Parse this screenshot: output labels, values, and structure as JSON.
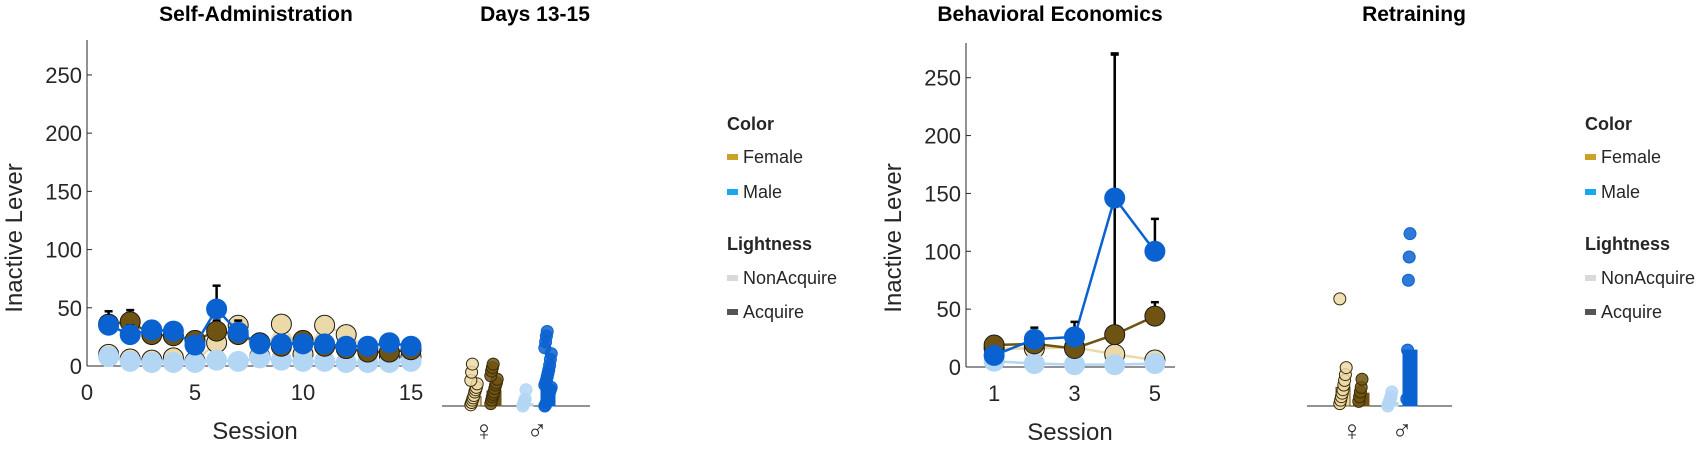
{
  "chart_data": [
    {
      "type": "line",
      "panel": "self-administration",
      "title": "Self-Administration",
      "xlabel": "Session",
      "ylabel": "Inactive Lever",
      "xlim": [
        0,
        15
      ],
      "ylim": [
        0,
        280
      ],
      "xticks": [
        "0",
        "5",
        "10",
        "15"
      ],
      "yticks": [
        "0",
        "50",
        "100",
        "150",
        "200",
        "250"
      ],
      "series": [
        {
          "group": "female-acquire",
          "x": [
            1,
            2,
            3,
            4,
            5,
            6,
            7,
            8,
            9,
            10,
            11,
            12,
            13,
            14,
            15
          ],
          "y": [
            36,
            38,
            27,
            26,
            22,
            30,
            27,
            20,
            17,
            22,
            17,
            15,
            12,
            12,
            14
          ],
          "err": [
            6,
            10,
            8,
            7,
            5,
            9,
            8,
            6,
            5,
            7,
            5,
            4,
            3,
            3,
            3
          ]
        },
        {
          "group": "female-nonacquire",
          "x": [
            1,
            2,
            3,
            4,
            5,
            6,
            7,
            8,
            9,
            10,
            11,
            12,
            13,
            14,
            15
          ],
          "y": [
            10,
            6,
            5,
            7,
            4,
            20,
            35,
            8,
            36,
            10,
            35,
            27,
            15,
            8,
            8
          ],
          "err": [
            3,
            2,
            2,
            2,
            2,
            6,
            12,
            3,
            18,
            3,
            20,
            18,
            6,
            2,
            2
          ]
        },
        {
          "group": "male-acquire",
          "x": [
            1,
            2,
            3,
            4,
            5,
            6,
            7,
            8,
            9,
            10,
            11,
            12,
            13,
            14,
            15
          ],
          "y": [
            35,
            27,
            31,
            30,
            18,
            49,
            29,
            19,
            19,
            19,
            19,
            17,
            17,
            20,
            17
          ],
          "err": [
            12,
            8,
            7,
            6,
            5,
            20,
            10,
            4,
            5,
            5,
            6,
            4,
            3,
            4,
            4
          ]
        },
        {
          "group": "male-nonacquire",
          "x": [
            1,
            2,
            3,
            4,
            5,
            6,
            7,
            8,
            9,
            10,
            11,
            12,
            13,
            14,
            15
          ],
          "y": [
            8,
            4,
            3,
            3,
            3,
            5,
            4,
            7,
            5,
            4,
            4,
            3,
            3,
            3,
            4
          ],
          "err": [
            1,
            1,
            1,
            1,
            1,
            1,
            1,
            1,
            1,
            1,
            1,
            1,
            1,
            1,
            1
          ]
        }
      ]
    },
    {
      "type": "bar",
      "panel": "days-13-15",
      "title": "Days 13-15",
      "categories": [
        "♀",
        "♂"
      ],
      "ylim": [
        0,
        280
      ],
      "bars": [
        {
          "group": "female-nonacquire",
          "cat": 0,
          "value": 8,
          "points": [
            1,
            3,
            5,
            7,
            9,
            12,
            14,
            16,
            19,
            22,
            29,
            36
          ]
        },
        {
          "group": "female-acquire",
          "cat": 0,
          "value": 13,
          "points": [
            2,
            5,
            8,
            10,
            12,
            15,
            18,
            20,
            23,
            26,
            30,
            33,
            36
          ]
        },
        {
          "group": "male-nonacquire",
          "cat": 1,
          "value": 2,
          "points": [
            0,
            2,
            4,
            6,
            14
          ]
        },
        {
          "group": "male-acquire",
          "cat": 1,
          "value": 18,
          "points": [
            0,
            1,
            3,
            5,
            8,
            10,
            12,
            14,
            16,
            18,
            20,
            22,
            25,
            28,
            31,
            35,
            40,
            45,
            50,
            55,
            60,
            64
          ]
        }
      ]
    },
    {
      "type": "line",
      "panel": "behavioral-economics",
      "title": "Behavioral Economics",
      "xlabel": "Session",
      "ylabel": "Inactive Lever",
      "xlim": [
        0.3,
        5.5
      ],
      "ylim": [
        0,
        280
      ],
      "xticks": [
        "1",
        "3",
        "5"
      ],
      "yticks": [
        "0",
        "50",
        "100",
        "150",
        "200",
        "250"
      ],
      "series": [
        {
          "group": "female-acquire",
          "x": [
            1,
            2,
            3,
            4,
            5
          ],
          "y": [
            19,
            20,
            16,
            28,
            44
          ],
          "err": [
            3,
            8,
            8,
            242,
            12
          ]
        },
        {
          "group": "female-nonacquire",
          "x": [
            1,
            2,
            3,
            4,
            5
          ],
          "y": [
            16,
            16,
            17,
            11,
            6
          ],
          "err": [
            3,
            3,
            4,
            3,
            2
          ]
        },
        {
          "group": "male-acquire",
          "x": [
            1,
            2,
            3,
            4,
            5
          ],
          "y": [
            10,
            24,
            26,
            146,
            100
          ],
          "err": [
            4,
            10,
            13,
            125,
            28
          ]
        },
        {
          "group": "male-nonacquire",
          "x": [
            1,
            2,
            3,
            4,
            5
          ],
          "y": [
            5,
            3,
            2,
            2,
            3
          ],
          "err": [
            1,
            1,
            1,
            1,
            1
          ]
        }
      ]
    },
    {
      "type": "bar",
      "panel": "retraining",
      "title": "Retraining",
      "categories": [
        "♀",
        "♂"
      ],
      "ylim": [
        0,
        280
      ],
      "bars": [
        {
          "group": "female-nonacquire",
          "cat": 0,
          "value": 16,
          "points": [
            2,
            5,
            8,
            11,
            14,
            18,
            22,
            27,
            33,
            92
          ]
        },
        {
          "group": "female-acquire",
          "cat": 0,
          "value": 11,
          "points": [
            4,
            8,
            12,
            16,
            23
          ]
        },
        {
          "group": "male-nonacquire",
          "cat": 1,
          "value": 3,
          "points": [
            0,
            2,
            4,
            6,
            8,
            12
          ]
        },
        {
          "group": "male-acquire",
          "cat": 1,
          "value": 48,
          "points": [
            6,
            48,
            108,
            128,
            148
          ]
        }
      ]
    }
  ],
  "legend": {
    "color_title": "Color",
    "color_items": [
      {
        "label": "Female",
        "color": "#c9a227"
      },
      {
        "label": "Male",
        "color": "#1aa7f0"
      }
    ],
    "lightness_title": "Lightness",
    "lightness_items": [
      {
        "label": "NonAcquire",
        "color": "#d9d9d9"
      },
      {
        "label": "Acquire",
        "color": "#555555"
      }
    ]
  },
  "colors": {
    "female-acquire": "#6e5312",
    "female-nonacquire": "#ecd9a8",
    "male-acquire": "#0a62d0",
    "male-nonacquire": "#b4d6f5"
  }
}
